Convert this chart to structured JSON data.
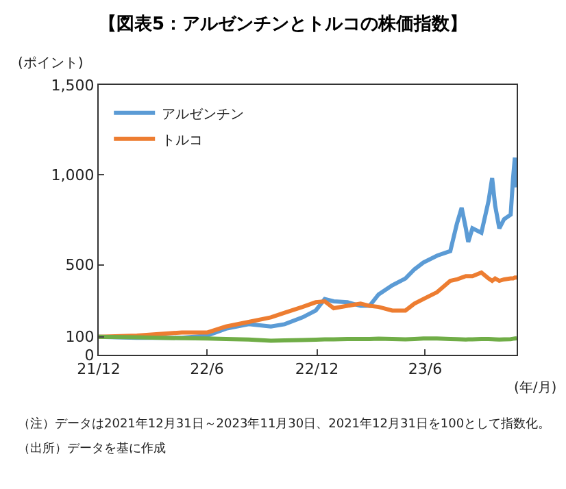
{
  "chart_data": {
    "type": "line",
    "title": "【図表5：アルゼンチンとトルコの株価指数】",
    "ylabel": "(ポイント)",
    "xlabel": "(年/月)",
    "x": [
      "2021-12-31",
      "2022-03-05",
      "2022-05-19",
      "2022-07-01",
      "2022-08-01",
      "2022-09-08",
      "2022-10-15",
      "2022-11-07",
      "2022-12-07",
      "2022-12-29",
      "2023-01-13",
      "2023-01-28",
      "2023-02-20",
      "2023-03-14",
      "2023-03-29",
      "2023-04-13",
      "2023-05-06",
      "2023-05-28",
      "2023-06-12",
      "2023-06-27",
      "2023-07-20",
      "2023-08-11",
      "2023-08-22",
      "2023-08-30",
      "2023-09-06",
      "2023-09-10",
      "2023-09-17",
      "2023-10-02",
      "2023-10-14",
      "2023-10-20",
      "2023-10-25",
      "2023-11-01",
      "2023-11-09",
      "2023-11-20",
      "2023-11-24",
      "2023-11-27",
      "2023-11-30"
    ],
    "series": [
      {
        "name": "アルゼンチン",
        "color": "#5b9bd5",
        "values": [
          100,
          94,
          94,
          107,
          145,
          170,
          157,
          170,
          208,
          246,
          310,
          297,
          292,
          272,
          272,
          335,
          386,
          424,
          475,
          513,
          551,
          576,
          728,
          817,
          703,
          627,
          703,
          678,
          855,
          982,
          830,
          703,
          754,
          779,
          982,
          1096,
          931
        ]
      },
      {
        "name": "トルコ",
        "color": "#ed7d31",
        "values": [
          100,
          107,
          124,
          124,
          157,
          183,
          208,
          234,
          266,
          292,
          297,
          259,
          272,
          284,
          272,
          266,
          246,
          246,
          284,
          310,
          348,
          411,
          419,
          429,
          437,
          437,
          437,
          457,
          424,
          411,
          424,
          411,
          419,
          424,
          424,
          429,
          429
        ]
      },
      {
        "color": "#70ad47",
        "values": [
          100,
          97,
          92,
          90,
          88,
          85,
          78,
          80,
          82,
          84,
          86,
          86,
          88,
          88,
          88,
          89,
          88,
          86,
          88,
          90,
          90,
          88,
          87,
          86,
          85,
          86,
          86,
          88,
          88,
          87,
          86,
          85,
          86,
          87,
          89,
          90,
          91
        ]
      }
    ],
    "xlim": [
      "2021-12-31",
      "2023-11-30"
    ],
    "xticks": [
      {
        "value": "2021-12-31",
        "label": "21/12"
      },
      {
        "value": "2022-06-30",
        "label": "22/6"
      },
      {
        "value": "2022-12-31",
        "label": "22/12"
      },
      {
        "value": "2023-06-30",
        "label": "23/6"
      }
    ],
    "ylim": [
      0,
      1500
    ],
    "yticks": [
      0,
      100,
      500,
      {
        "value": 1000,
        "label": "1,000"
      },
      {
        "value": 1500,
        "label": "1,500"
      }
    ],
    "legend": "top left",
    "marker": "none",
    "line_style": "solid",
    "annotations": [
      "（注）データは2021年12月31日～2023年11月30日、2021年12月31日を100として指数化。",
      "（出所）データを基に作成"
    ]
  }
}
